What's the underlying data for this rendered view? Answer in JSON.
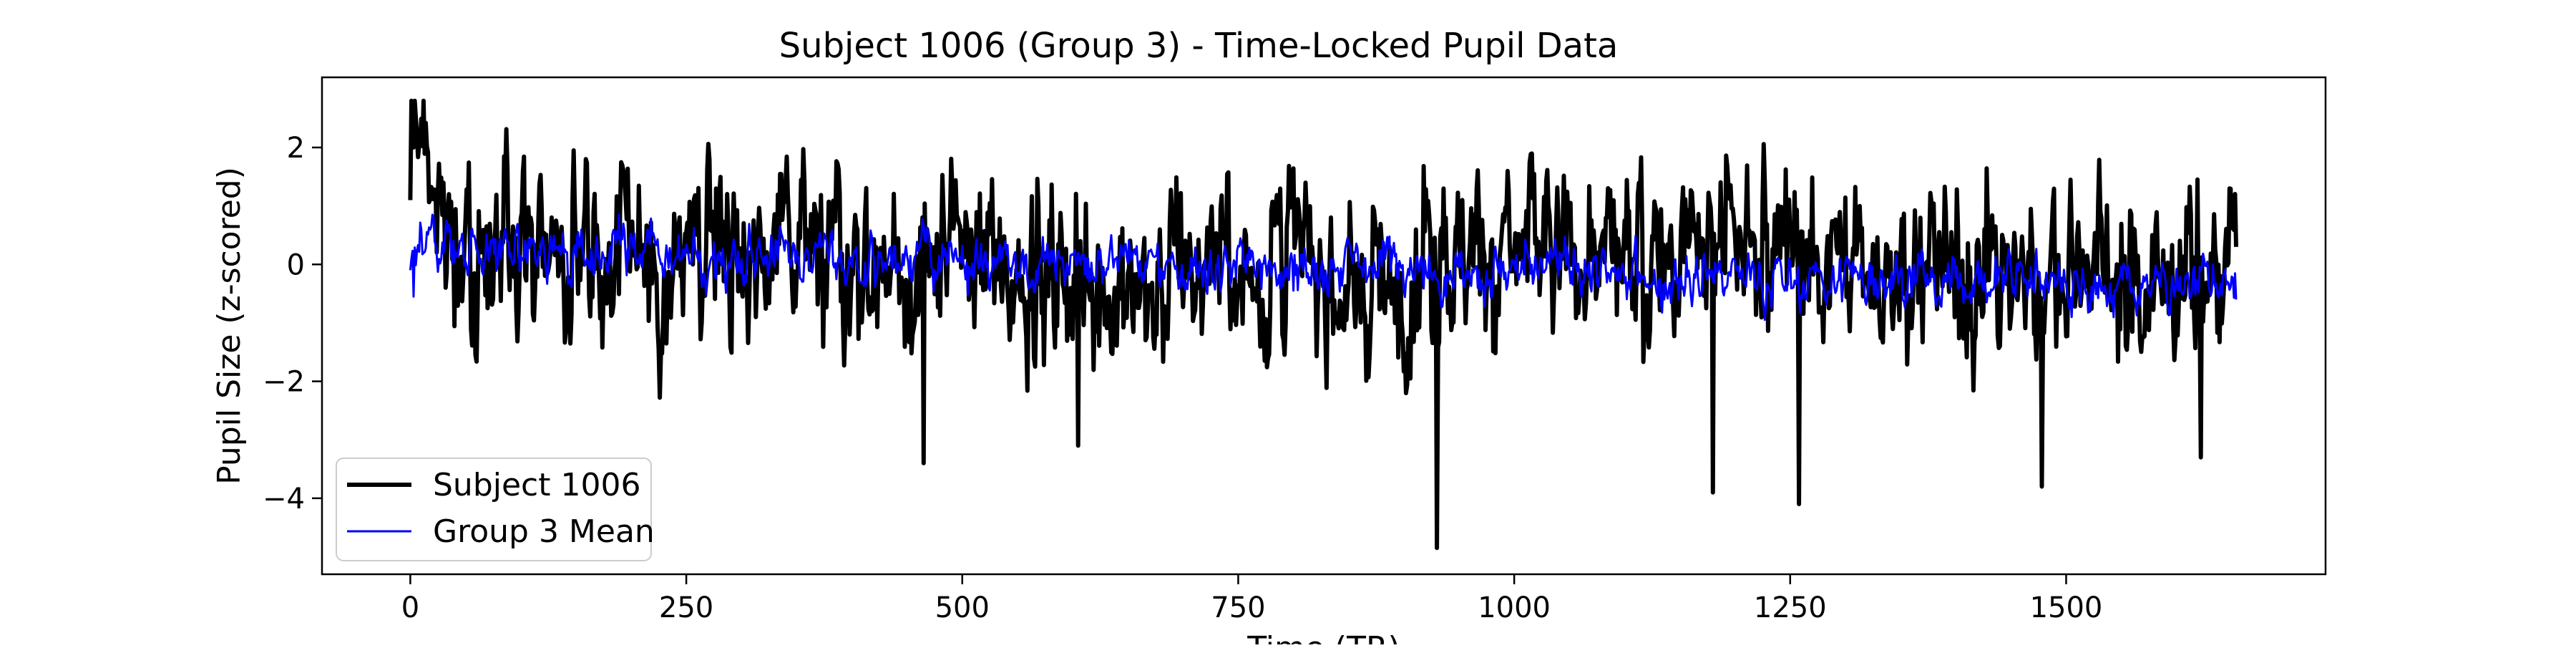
{
  "chart_data": {
    "type": "line",
    "title": "Subject 1006 (Group 3) - Time-Locked Pupil Data",
    "xlabel": "Time (TR)",
    "ylabel": "Pupil Size (z-scored)",
    "xlim": [
      -80,
      1735
    ],
    "ylim": [
      -5.3,
      3.2
    ],
    "xticks": [
      0,
      250,
      500,
      750,
      1000,
      1250,
      1500
    ],
    "xtick_labels": [
      "0",
      "250",
      "500",
      "750",
      "1000",
      "1250",
      "1500"
    ],
    "yticks": [
      2,
      0,
      -2,
      -4
    ],
    "ytick_labels": [
      "2",
      "0",
      "−2",
      "−4"
    ],
    "legend_position": "lower-left",
    "n_points": 1655,
    "series": [
      {
        "name": "Subject 1006",
        "color": "#000000",
        "style": "thick",
        "mean": 0.0,
        "std": 0.85,
        "summary": {
          "start_value": 1.1,
          "max": 2.8,
          "max_at_x": 12,
          "min": -4.85,
          "min_at_x": 930,
          "notable_troughs": [
            [
              465,
              -3.4
            ],
            [
              605,
              -3.1
            ],
            [
              1180,
              -3.9
            ],
            [
              1258,
              -4.1
            ],
            [
              1478,
              -3.8
            ],
            [
              1622,
              -3.3
            ]
          ],
          "end_value": 0.3
        }
      },
      {
        "name": "Group 3 Mean",
        "color": "#0000ff",
        "style": "thin",
        "summary": {
          "start_value": -0.1,
          "early_level": 0.25,
          "late_level": -0.35,
          "range": [
            -1.5,
            0.85
          ],
          "end_value": -0.6
        }
      }
    ]
  }
}
